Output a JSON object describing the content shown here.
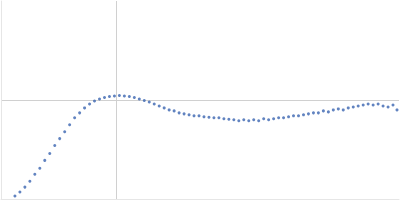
{
  "chart_data": {
    "type": "scatter",
    "color": "#3a64b0",
    "marker": "circle",
    "grid": true,
    "tick_labels": false,
    "xlim": [
      0,
      6
    ],
    "xticks": [
      1.73
    ],
    "ylim": [
      0,
      2.2
    ],
    "yticks": [
      1.1
    ],
    "x": [
      0.21,
      0.285,
      0.36,
      0.435,
      0.51,
      0.585,
      0.66,
      0.735,
      0.81,
      0.885,
      0.96,
      1.035,
      1.11,
      1.185,
      1.26,
      1.335,
      1.41,
      1.485,
      1.56,
      1.635,
      1.71,
      1.785,
      1.86,
      1.935,
      2.01,
      2.085,
      2.16,
      2.235,
      2.31,
      2.385,
      2.46,
      2.535,
      2.61,
      2.685,
      2.76,
      2.835,
      2.91,
      2.985,
      3.06,
      3.135,
      3.21,
      3.285,
      3.36,
      3.435,
      3.51,
      3.585,
      3.66,
      3.735,
      3.81,
      3.885,
      3.96,
      4.035,
      4.11,
      4.185,
      4.26,
      4.335,
      4.41,
      4.485,
      4.56,
      4.635,
      4.71,
      4.785,
      4.86,
      4.935,
      5.01,
      5.085,
      5.16,
      5.235,
      5.31,
      5.385,
      5.46,
      5.535,
      5.61,
      5.685,
      5.76,
      5.835,
      5.91,
      5.97
    ],
    "values": [
      0.033,
      0.077,
      0.132,
      0.198,
      0.275,
      0.341,
      0.429,
      0.506,
      0.594,
      0.671,
      0.748,
      0.825,
      0.902,
      0.957,
      1.012,
      1.056,
      1.089,
      1.111,
      1.128,
      1.139,
      1.144,
      1.15,
      1.144,
      1.139,
      1.128,
      1.111,
      1.095,
      1.078,
      1.056,
      1.034,
      1.012,
      0.99,
      0.979,
      0.957,
      0.946,
      0.935,
      0.924,
      0.924,
      0.913,
      0.908,
      0.902,
      0.902,
      0.891,
      0.886,
      0.88,
      0.869,
      0.88,
      0.869,
      0.88,
      0.869,
      0.891,
      0.88,
      0.891,
      0.902,
      0.902,
      0.913,
      0.924,
      0.924,
      0.935,
      0.946,
      0.957,
      0.957,
      0.979,
      0.968,
      0.99,
      1.001,
      0.99,
      1.012,
      1.023,
      1.034,
      1.045,
      1.056,
      1.045,
      1.056,
      1.034,
      1.023,
      1.045,
      0.99
    ]
  }
}
